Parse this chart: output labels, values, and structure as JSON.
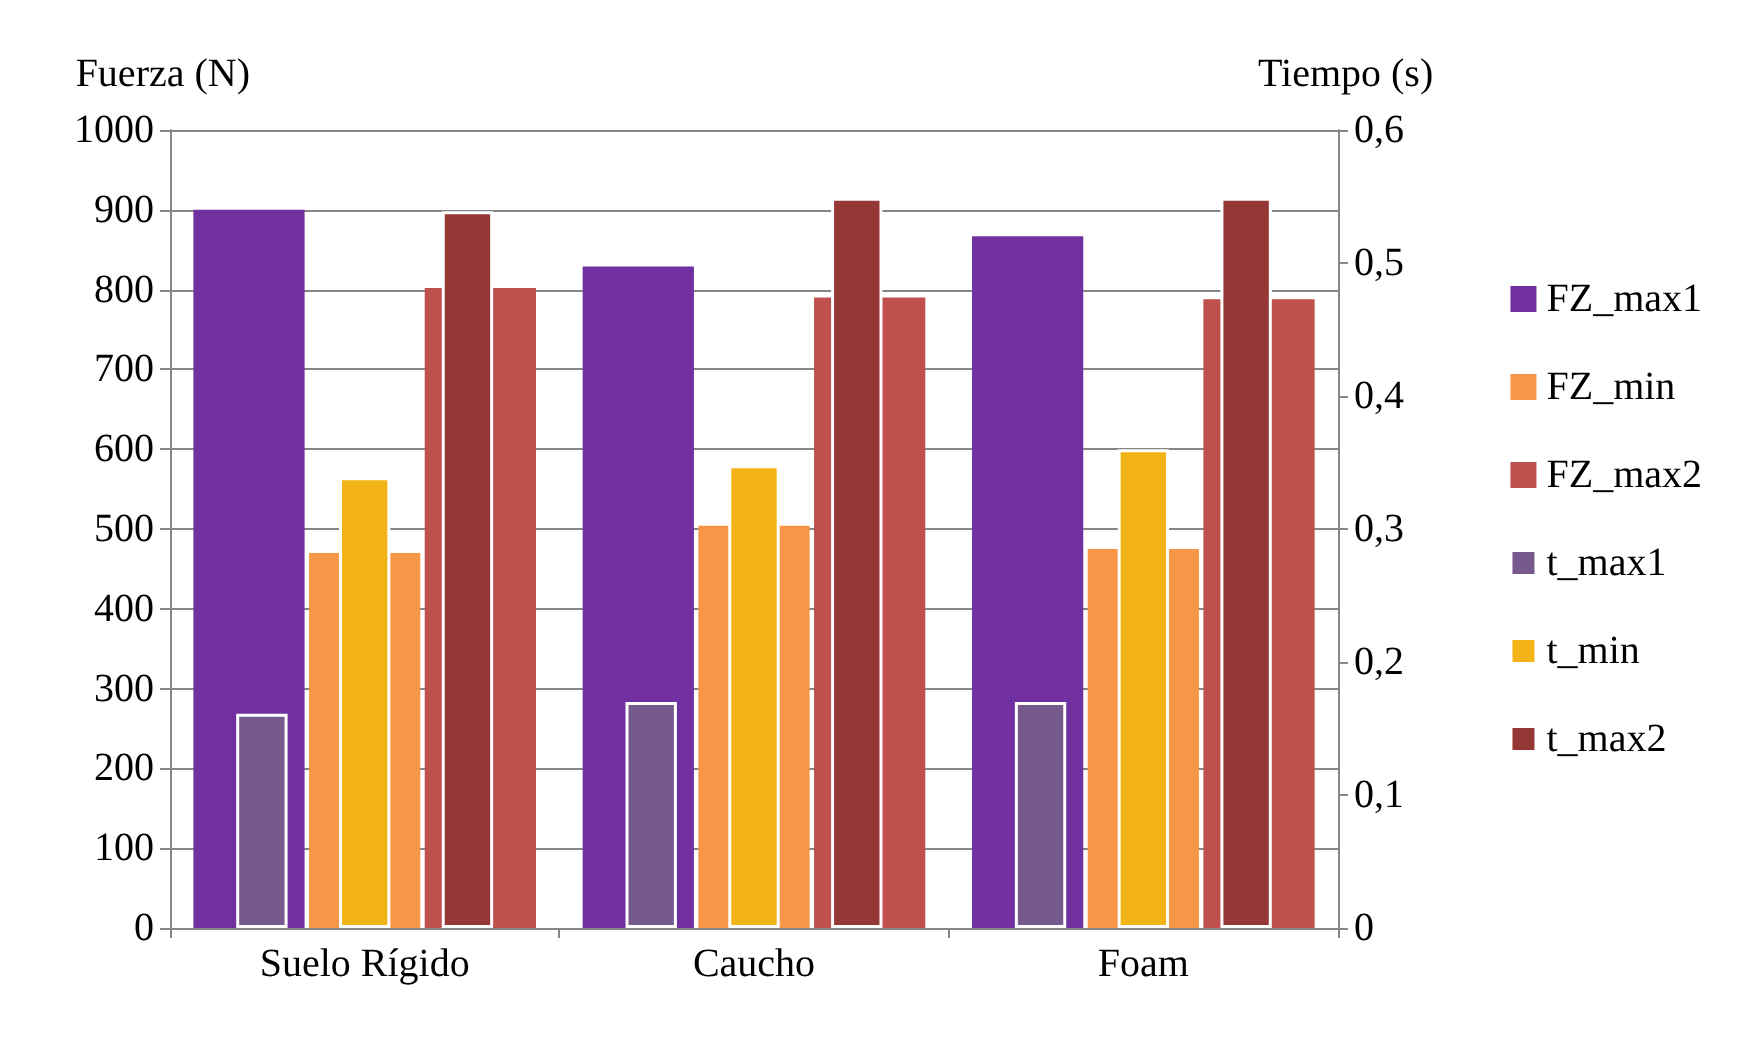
{
  "chart_data": {
    "type": "bar",
    "ylabel": "Fuerza (N)",
    "y2label": "Tiempo (s)",
    "categories": [
      "Suelo Rígido",
      "Caucho",
      "Foam"
    ],
    "series": [
      {
        "name": "FZ_max1",
        "color": "#7030a0",
        "values": [
          900,
          829,
          867
        ]
      },
      {
        "name": "FZ_min",
        "color": "#f79646",
        "values": [
          470,
          504,
          475
        ]
      },
      {
        "name": "FZ_max2",
        "color": "#c0504d",
        "values": [
          802,
          790,
          788
        ]
      },
      {
        "name": "t_max1",
        "color": "#765a8e",
        "axis": "y2",
        "values": [
          0.161,
          0.17,
          0.17
        ]
      },
      {
        "name": "t_min",
        "color": "#f2b316",
        "axis": "y2",
        "values": [
          0.339,
          0.348,
          0.36
        ]
      },
      {
        "name": "t_max2",
        "color": "#953735",
        "axis": "y2",
        "values": [
          0.539,
          0.549,
          0.549
        ]
      }
    ],
    "ylim": [
      0,
      1000
    ],
    "yticks": [
      0,
      100,
      200,
      300,
      400,
      500,
      600,
      700,
      800,
      900,
      1000
    ],
    "y2lim": [
      0,
      0.6
    ],
    "y2ticks": [
      0,
      {
        "value": 0.1,
        "label": "0,1"
      },
      {
        "value": 0.2,
        "label": "0,2"
      },
      {
        "value": 0.3,
        "label": "0,3"
      },
      {
        "value": 0.4,
        "label": "0,4"
      },
      {
        "value": 0.5,
        "label": "0,5"
      },
      {
        "value": 0.6,
        "label": "0,6"
      }
    ],
    "grid": "y",
    "legend": "right"
  }
}
